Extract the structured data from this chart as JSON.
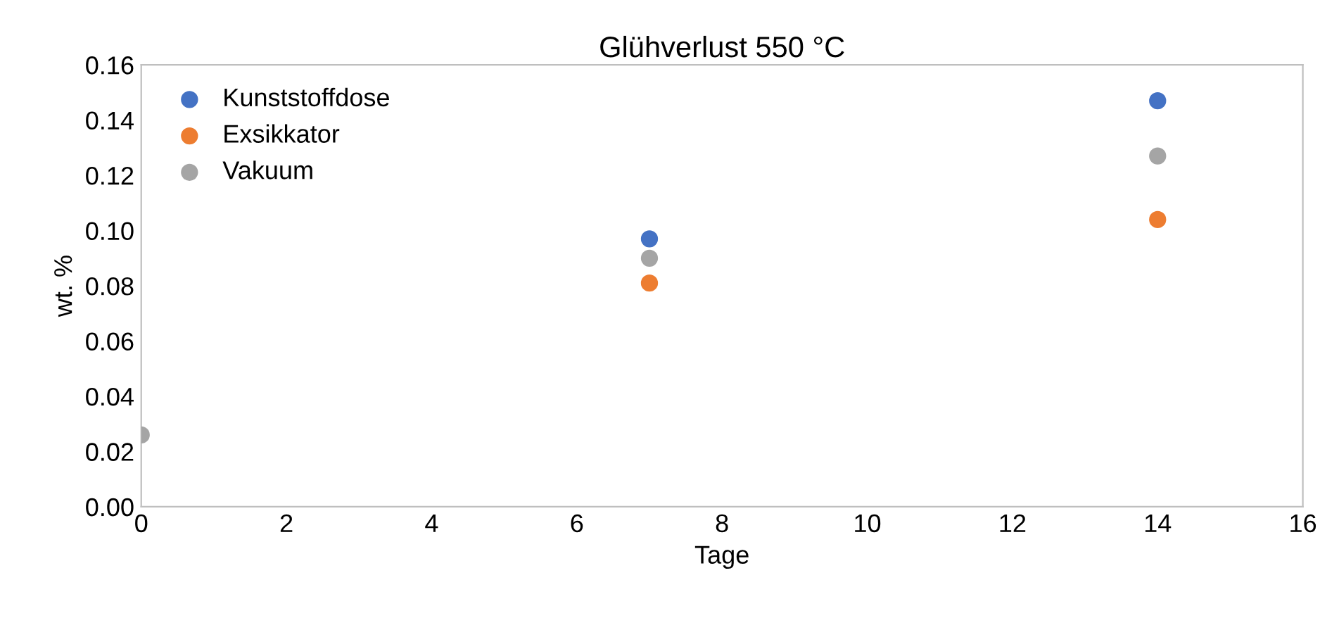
{
  "chart_data": {
    "type": "scatter",
    "title": "Glühverlust 550 °C",
    "xlabel": "Tage",
    "ylabel": "wt. %",
    "xlim": [
      0,
      16
    ],
    "xticks": [
      0,
      2,
      4,
      6,
      8,
      10,
      12,
      14,
      16
    ],
    "ylim": [
      0,
      0.16
    ],
    "yticks": [
      {
        "value": 0,
        "label": "0.00"
      },
      {
        "value": 0.02,
        "label": "0.02"
      },
      {
        "value": 0.04,
        "label": "0.04"
      },
      {
        "value": 0.06,
        "label": "0.06"
      },
      {
        "value": 0.08,
        "label": "0.08"
      },
      {
        "value": 0.1,
        "label": "0.10"
      },
      {
        "value": 0.12,
        "label": "0.12"
      },
      {
        "value": 0.14,
        "label": "0.14"
      },
      {
        "value": 0.16,
        "label": "0.16"
      }
    ],
    "grid": false,
    "legend": "top left",
    "marker": "circle",
    "series": [
      {
        "name": "Kunststoffdose",
        "color": "#4472c4",
        "x": [
          7,
          14
        ],
        "values": [
          0.097,
          0.147
        ]
      },
      {
        "name": "Exsikkator",
        "color": "#ed7d31",
        "x": [
          7,
          14
        ],
        "values": [
          0.081,
          0.104
        ]
      },
      {
        "name": "Vakuum",
        "color": "#a5a5a5",
        "x": [
          0,
          7,
          14
        ],
        "values": [
          0.026,
          0.09,
          0.127
        ]
      }
    ]
  }
}
